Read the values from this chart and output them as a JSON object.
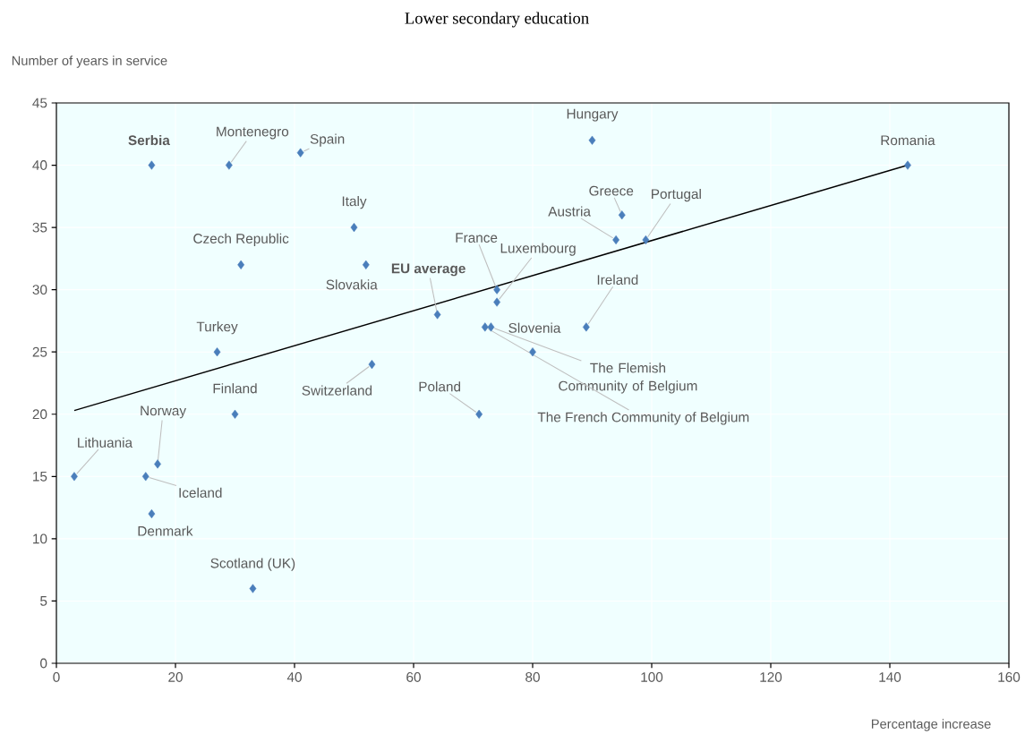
{
  "chart_data": {
    "type": "scatter",
    "title": "Lower secondary education",
    "xlabel": "Percentage increase",
    "ylabel": "Number of years in service",
    "xlim": [
      0,
      160
    ],
    "ylim": [
      0,
      45
    ],
    "xticks": [
      0,
      20,
      40,
      60,
      80,
      100,
      120,
      140,
      160
    ],
    "yticks": [
      0,
      5,
      10,
      15,
      20,
      25,
      30,
      35,
      40,
      45
    ],
    "grid": true,
    "marker": "diamond",
    "series": [
      {
        "color": "#4a7ebb",
        "x": [
          16,
          29,
          41,
          90,
          143,
          50,
          95,
          94,
          99,
          31,
          52,
          74,
          74,
          64,
          89,
          80,
          73,
          72,
          27,
          53,
          71,
          30,
          17,
          3,
          15,
          16,
          33
        ],
        "values": [
          40,
          40,
          41,
          42,
          40,
          35,
          36,
          34,
          34,
          32,
          32,
          30,
          29,
          28,
          27,
          25,
          27,
          27,
          25,
          24,
          20,
          20,
          16,
          15,
          15,
          12,
          6
        ]
      },
      {
        "type": "line",
        "color": "#000000",
        "marker": "none",
        "x": [
          3,
          143
        ],
        "values": [
          20.3,
          40
        ]
      }
    ],
    "annotations": [
      {
        "text": "Serbia",
        "x": 16,
        "y": 40
      },
      {
        "text": "Montenegro",
        "x": 29,
        "y": 40
      },
      {
        "text": "Spain",
        "x": 41,
        "y": 41
      },
      {
        "text": "Hungary",
        "x": 90,
        "y": 42
      },
      {
        "text": "Romania",
        "x": 143,
        "y": 40
      },
      {
        "text": "Italy",
        "x": 50,
        "y": 35
      },
      {
        "text": "Greece",
        "x": 95,
        "y": 36
      },
      {
        "text": "Austria",
        "x": 94,
        "y": 34
      },
      {
        "text": "Portugal",
        "x": 99,
        "y": 34
      },
      {
        "text": "Czech Republic",
        "x": 31,
        "y": 32
      },
      {
        "text": "Slovakia",
        "x": 52,
        "y": 32
      },
      {
        "text": "France",
        "x": 74,
        "y": 30
      },
      {
        "text": "Luxembourg",
        "x": 74,
        "y": 29
      },
      {
        "text": "EU average",
        "x": 64,
        "y": 28
      },
      {
        "text": "Ireland",
        "x": 89,
        "y": 27
      },
      {
        "text": "Slovenia",
        "x": 80,
        "y": 25
      },
      {
        "text": "The Flemish Community of Belgium",
        "x": 73,
        "y": 27
      },
      {
        "text": "The French Community of Belgium",
        "x": 72,
        "y": 27
      },
      {
        "text": "Turkey",
        "x": 27,
        "y": 25
      },
      {
        "text": "Switzerland",
        "x": 53,
        "y": 24
      },
      {
        "text": "Poland",
        "x": 71,
        "y": 20
      },
      {
        "text": "Finland",
        "x": 30,
        "y": 20
      },
      {
        "text": "Norway",
        "x": 17,
        "y": 16
      },
      {
        "text": "Lithuania",
        "x": 3,
        "y": 15
      },
      {
        "text": "Iceland",
        "x": 15,
        "y": 15
      },
      {
        "text": "Denmark",
        "x": 16,
        "y": 12
      },
      {
        "text": "Scotland (UK)",
        "x": 33,
        "y": 6
      }
    ]
  }
}
